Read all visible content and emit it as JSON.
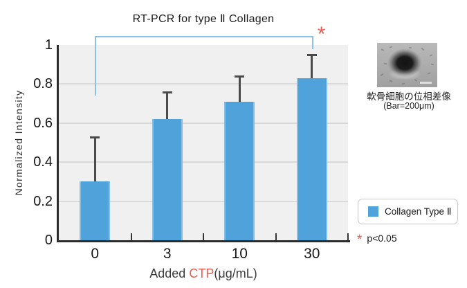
{
  "chart_data": {
    "type": "bar",
    "title": "RT-PCR for type Ⅱ Collagen",
    "categories": [
      "0",
      "3",
      "10",
      "30"
    ],
    "series": [
      {
        "name": "Collagen Type Ⅱ",
        "values": [
          0.3,
          0.62,
          0.71,
          0.83
        ],
        "error_plus": [
          0.23,
          0.14,
          0.13,
          0.12
        ]
      }
    ],
    "xlabel": {
      "prefix": "Added ",
      "highlight": "CTP",
      "suffix": "(μg/mL)"
    },
    "ylabel": "Normalized Intensity",
    "ylim": [
      0,
      1
    ],
    "yticks": [
      0,
      0.2,
      0.4,
      0.6,
      0.8,
      1
    ],
    "grid": true,
    "legend_position": "right-bottom",
    "bar_color": "#4fa2da",
    "bar_edge_color": "#85bee5",
    "error_color": "#4a4a4a",
    "plot_bg_color": "#f0f0f0",
    "grid_color": "#dadada",
    "axis_color": "#2b2b2b",
    "significance": {
      "from_category": "0",
      "to_category": "30",
      "marker": "*",
      "bracket_color": "#8bc0e8",
      "marker_color": "#f0594e"
    }
  },
  "legend": {
    "label": "Collagen Type Ⅱ",
    "swatch_color": "#4fa2da"
  },
  "note": {
    "marker": "*",
    "text": "p<0.05"
  },
  "side_figure": {
    "caption_line1": "軟骨細胞の位相差像",
    "caption_line2": "(Bar=200μm)"
  }
}
